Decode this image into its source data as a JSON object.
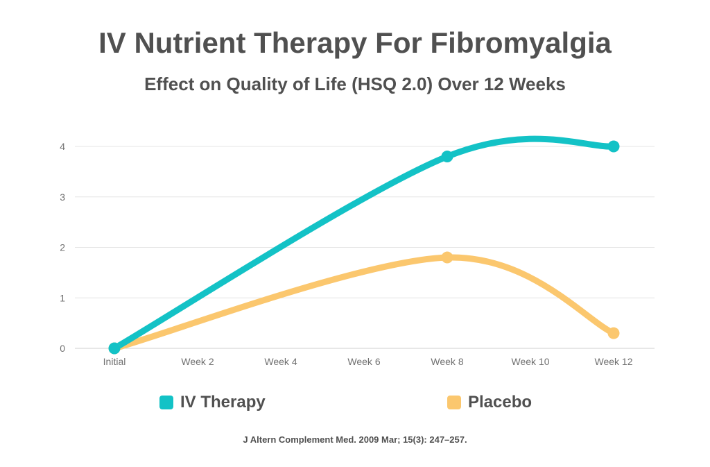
{
  "chart_data": {
    "type": "line",
    "title": "IV Nutrient Therapy For Fibromyalgia",
    "subtitle": "Effect on Quality of Life (HSQ 2.0) Over 12 Weeks",
    "categories": [
      "Initial",
      "Week 2",
      "Week 4",
      "Week 6",
      "Week 8",
      "Week 10",
      "Week 12"
    ],
    "yticks": [
      0,
      1,
      2,
      3,
      4
    ],
    "ylim": [
      0,
      4
    ],
    "grid": true,
    "legend_position": "bottom",
    "series": [
      {
        "name": "IV Therapy",
        "color": "#13c2c6",
        "points": [
          {
            "x": "Initial",
            "y": 0
          },
          {
            "x": "Week 8",
            "y": 3.8
          },
          {
            "x": "Week 12",
            "y": 4.0
          }
        ]
      },
      {
        "name": "Placebo",
        "color": "#fbc76e",
        "points": [
          {
            "x": "Initial",
            "y": 0
          },
          {
            "x": "Week 8",
            "y": 1.8
          },
          {
            "x": "Week 12",
            "y": 0.3
          }
        ]
      }
    ],
    "source": "J Altern Complement Med. 2009 Mar; 15(3): 247–257."
  }
}
